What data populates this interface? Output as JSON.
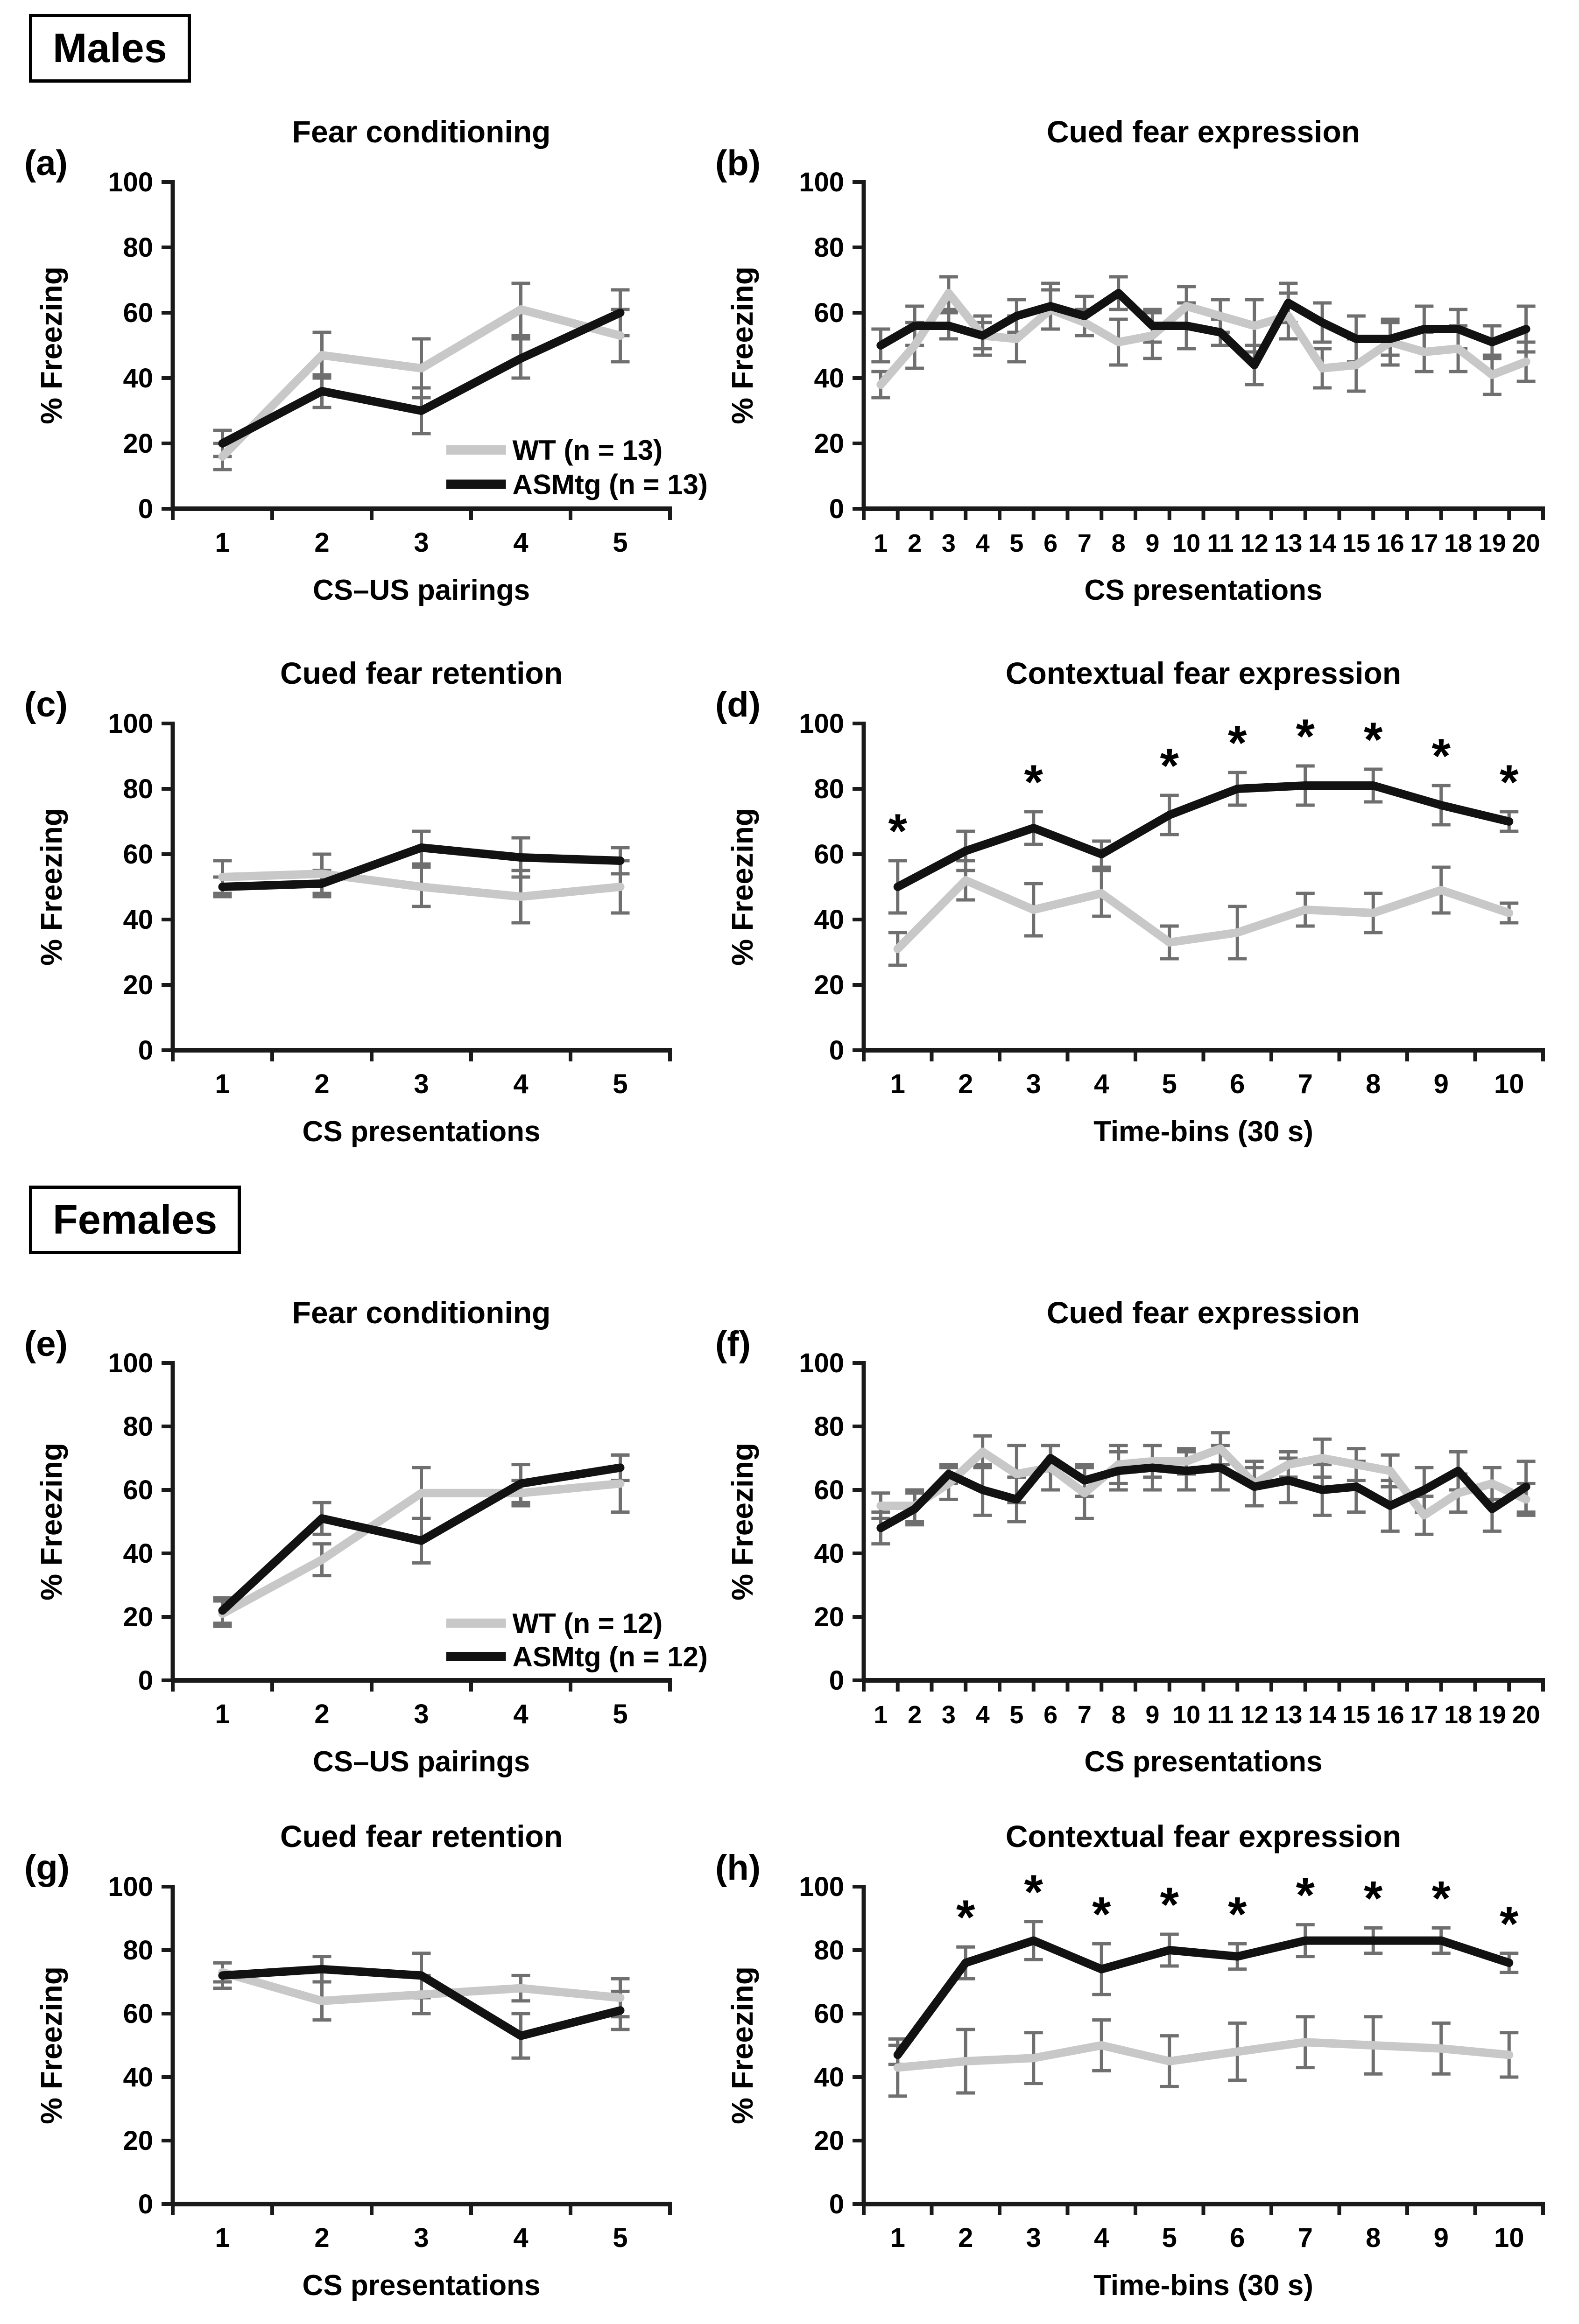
{
  "page": {
    "background": "#ffffff"
  },
  "sections": [
    {
      "label": "Males"
    },
    {
      "label": "Females"
    }
  ],
  "colors": {
    "wt": "#c8c8c8",
    "asmtg": "#121212",
    "error_bar": "#6f6f6f",
    "text": "#000000",
    "axis": "#1a1a1a"
  },
  "chart_data": [
    {
      "id": "a",
      "letter": "(a)",
      "section": "Males",
      "type": "line",
      "title": "Fear conditioning",
      "xlabel": "CS–US pairings",
      "ylabel": "% Freezing",
      "categories": [
        1,
        2,
        3,
        4,
        5
      ],
      "ylim": [
        0,
        100
      ],
      "yticks": [
        0,
        20,
        40,
        60,
        80,
        100
      ],
      "series": [
        {
          "name": "WT (n = 13)",
          "key": "wt",
          "values": [
            16,
            47,
            43,
            61,
            53
          ],
          "errors": [
            4,
            7,
            9,
            8,
            8
          ]
        },
        {
          "name": "ASMtg (n = 13)",
          "key": "asmtg",
          "values": [
            20,
            36,
            30,
            46,
            60
          ],
          "errors": [
            4,
            5,
            7,
            6,
            7
          ]
        }
      ],
      "legend": {
        "show": true,
        "entries": [
          "WT (n = 13)",
          "ASMtg (n = 13)"
        ]
      },
      "asterisks": []
    },
    {
      "id": "b",
      "letter": "(b)",
      "section": "Males",
      "type": "line",
      "title": "Cued fear expression",
      "xlabel": "CS presentations",
      "ylabel": "% Freezing",
      "categories": [
        1,
        2,
        3,
        4,
        5,
        6,
        7,
        8,
        9,
        10,
        11,
        12,
        13,
        14,
        15,
        16,
        17,
        18,
        19,
        20
      ],
      "ylim": [
        0,
        100
      ],
      "yticks": [
        0,
        20,
        40,
        60,
        80,
        100
      ],
      "series": [
        {
          "name": "WT",
          "key": "wt",
          "values": [
            38,
            50,
            66,
            53,
            52,
            61,
            57,
            51,
            53,
            62,
            59,
            56,
            59,
            43,
            44,
            51,
            48,
            49,
            41,
            45
          ],
          "errors": [
            4,
            7,
            5,
            6,
            7,
            6,
            4,
            7,
            7,
            6,
            5,
            8,
            7,
            6,
            8,
            7,
            6,
            7,
            6,
            6
          ]
        },
        {
          "name": "ASMtg",
          "key": "asmtg",
          "values": [
            50,
            56,
            56,
            53,
            59,
            62,
            59,
            66,
            56,
            56,
            54,
            44,
            63,
            57,
            52,
            52,
            55,
            55,
            51,
            55
          ],
          "errors": [
            5,
            6,
            4,
            4,
            5,
            7,
            6,
            5,
            5,
            7,
            4,
            6,
            6,
            6,
            7,
            5,
            7,
            6,
            5,
            7
          ]
        }
      ],
      "legend": {
        "show": false,
        "entries": []
      },
      "asterisks": []
    },
    {
      "id": "c",
      "letter": "(c)",
      "section": "Males",
      "type": "line",
      "title": "Cued fear retention",
      "xlabel": "CS presentations",
      "ylabel": "% Freezing",
      "categories": [
        1,
        2,
        3,
        4,
        5
      ],
      "ylim": [
        0,
        100
      ],
      "yticks": [
        0,
        20,
        40,
        60,
        80,
        100
      ],
      "series": [
        {
          "name": "WT",
          "key": "wt",
          "values": [
            53,
            54,
            50,
            47,
            50
          ],
          "errors": [
            5,
            6,
            6,
            8,
            8
          ]
        },
        {
          "name": "ASMtg",
          "key": "asmtg",
          "values": [
            50,
            51,
            62,
            59,
            58
          ],
          "errors": [
            3,
            4,
            5,
            6,
            4
          ]
        }
      ],
      "legend": {
        "show": false,
        "entries": []
      },
      "asterisks": []
    },
    {
      "id": "d",
      "letter": "(d)",
      "section": "Males",
      "type": "line",
      "title": "Contextual fear expression",
      "xlabel": "Time-bins (30 s)",
      "ylabel": "% Freezing",
      "categories": [
        1,
        2,
        3,
        4,
        5,
        6,
        7,
        8,
        9,
        10
      ],
      "ylim": [
        0,
        100
      ],
      "yticks": [
        0,
        20,
        40,
        60,
        80,
        100
      ],
      "series": [
        {
          "name": "WT",
          "key": "wt",
          "values": [
            31,
            52,
            43,
            48,
            33,
            36,
            43,
            42,
            49,
            42
          ],
          "errors": [
            5,
            6,
            8,
            7,
            5,
            8,
            5,
            6,
            7,
            3
          ]
        },
        {
          "name": "ASMtg",
          "key": "asmtg",
          "values": [
            50,
            61,
            68,
            60,
            72,
            80,
            81,
            81,
            75,
            70
          ],
          "errors": [
            8,
            6,
            5,
            4,
            6,
            5,
            6,
            5,
            6,
            3
          ]
        }
      ],
      "legend": {
        "show": false,
        "entries": []
      },
      "asterisks": [
        1,
        3,
        5,
        6,
        7,
        8,
        9,
        10
      ]
    },
    {
      "id": "e",
      "letter": "(e)",
      "section": "Females",
      "type": "line",
      "title": "Fear conditioning",
      "xlabel": "CS–US pairings",
      "ylabel": "% Freezing",
      "categories": [
        1,
        2,
        3,
        4,
        5
      ],
      "ylim": [
        0,
        100
      ],
      "yticks": [
        0,
        20,
        40,
        60,
        80,
        100
      ],
      "series": [
        {
          "name": "WT (n = 12)",
          "key": "wt",
          "values": [
            21,
            38,
            59,
            59,
            62
          ],
          "errors": [
            4,
            5,
            8,
            4,
            9
          ]
        },
        {
          "name": "ASMtg (n = 12)",
          "key": "asmtg",
          "values": [
            22,
            51,
            44,
            62,
            67
          ],
          "errors": [
            4,
            5,
            7,
            6,
            4
          ]
        }
      ],
      "legend": {
        "show": true,
        "entries": [
          "WT (n = 12)",
          "ASMtg (n = 12)"
        ]
      },
      "asterisks": []
    },
    {
      "id": "f",
      "letter": "(f)",
      "section": "Females",
      "type": "line",
      "title": "Cued fear expression",
      "xlabel": "CS presentations",
      "ylabel": "% Freezing",
      "categories": [
        1,
        2,
        3,
        4,
        5,
        6,
        7,
        8,
        9,
        10,
        11,
        12,
        13,
        14,
        15,
        16,
        17,
        18,
        19,
        20
      ],
      "ylim": [
        0,
        100
      ],
      "yticks": [
        0,
        20,
        40,
        60,
        80,
        100
      ],
      "series": [
        {
          "name": "WT",
          "key": "wt",
          "values": [
            55,
            55,
            62,
            72,
            65,
            67,
            59,
            68,
            69,
            69,
            73,
            62,
            68,
            70,
            68,
            66,
            52,
            59,
            62,
            57
          ],
          "errors": [
            4,
            5,
            5,
            5,
            9,
            7,
            8,
            6,
            5,
            4,
            5,
            7,
            4,
            6,
            5,
            5,
            6,
            6,
            5,
            5
          ]
        },
        {
          "name": "ASMtg",
          "key": "asmtg",
          "values": [
            48,
            54,
            65,
            60,
            57,
            70,
            63,
            66,
            67,
            66,
            67,
            61,
            63,
            60,
            61,
            55,
            60,
            66,
            54,
            61
          ],
          "errors": [
            5,
            5,
            3,
            8,
            7,
            4,
            5,
            6,
            7,
            6,
            7,
            6,
            7,
            8,
            8,
            8,
            7,
            6,
            7,
            8
          ]
        }
      ],
      "legend": {
        "show": false,
        "entries": []
      },
      "asterisks": []
    },
    {
      "id": "g",
      "letter": "(g)",
      "section": "Females",
      "type": "line",
      "title": "Cued fear retention",
      "xlabel": "CS presentations",
      "ylabel": "% Freezing",
      "categories": [
        1,
        2,
        3,
        4,
        5
      ],
      "ylim": [
        0,
        100
      ],
      "yticks": [
        0,
        20,
        40,
        60,
        80,
        100
      ],
      "series": [
        {
          "name": "WT",
          "key": "wt",
          "values": [
            73,
            64,
            66,
            68,
            65
          ],
          "errors": [
            3,
            6,
            6,
            4,
            6
          ]
        },
        {
          "name": "ASMtg",
          "key": "asmtg",
          "values": [
            72,
            74,
            72,
            53,
            61
          ],
          "errors": [
            4,
            4,
            7,
            7,
            6
          ]
        }
      ],
      "legend": {
        "show": false,
        "entries": []
      },
      "asterisks": []
    },
    {
      "id": "h",
      "letter": "(h)",
      "section": "Females",
      "type": "line",
      "title": "Contextual fear expression",
      "xlabel": "Time-bins (30 s)",
      "ylabel": "% Freezing",
      "categories": [
        1,
        2,
        3,
        4,
        5,
        6,
        7,
        8,
        9,
        10
      ],
      "ylim": [
        0,
        100
      ],
      "yticks": [
        0,
        20,
        40,
        60,
        80,
        100
      ],
      "series": [
        {
          "name": "WT",
          "key": "wt",
          "values": [
            43,
            45,
            46,
            50,
            45,
            48,
            51,
            50,
            49,
            47
          ],
          "errors": [
            9,
            10,
            8,
            8,
            8,
            9,
            8,
            9,
            8,
            7
          ]
        },
        {
          "name": "ASMtg",
          "key": "asmtg",
          "values": [
            47,
            76,
            83,
            74,
            80,
            78,
            83,
            83,
            83,
            76
          ],
          "errors": [
            3,
            5,
            6,
            8,
            5,
            4,
            5,
            4,
            4,
            3
          ]
        }
      ],
      "legend": {
        "show": false,
        "entries": []
      },
      "asterisks": [
        2,
        3,
        4,
        5,
        6,
        7,
        8,
        9,
        10
      ]
    }
  ]
}
